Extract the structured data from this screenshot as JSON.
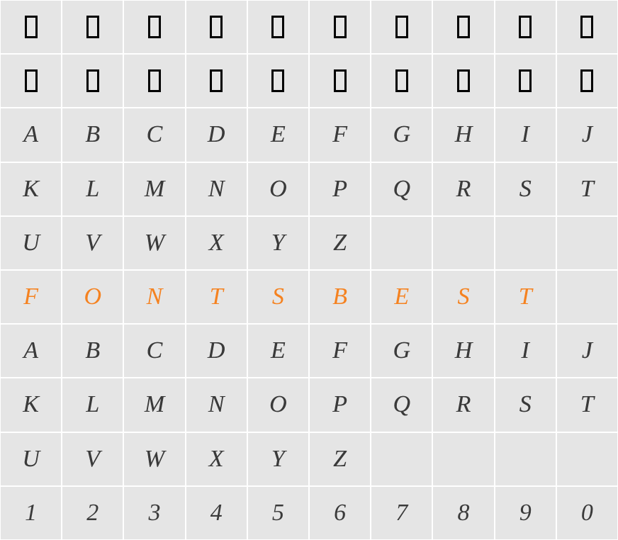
{
  "grid": {
    "columns": 10,
    "rows": 10,
    "background_color": "#e5e5e5",
    "gridline_color": "#ffffff",
    "cells": [
      [
        {
          "type": "placeholder"
        },
        {
          "type": "placeholder"
        },
        {
          "type": "placeholder"
        },
        {
          "type": "placeholder"
        },
        {
          "type": "placeholder"
        },
        {
          "type": "placeholder"
        },
        {
          "type": "placeholder"
        },
        {
          "type": "placeholder"
        },
        {
          "type": "placeholder"
        },
        {
          "type": "placeholder"
        }
      ],
      [
        {
          "type": "placeholder"
        },
        {
          "type": "placeholder"
        },
        {
          "type": "placeholder"
        },
        {
          "type": "placeholder"
        },
        {
          "type": "placeholder"
        },
        {
          "type": "placeholder"
        },
        {
          "type": "placeholder"
        },
        {
          "type": "placeholder"
        },
        {
          "type": "placeholder"
        },
        {
          "type": "placeholder"
        }
      ],
      [
        {
          "type": "letter",
          "value": "A",
          "color": "#3a3a3a"
        },
        {
          "type": "letter",
          "value": "B",
          "color": "#3a3a3a"
        },
        {
          "type": "letter",
          "value": "C",
          "color": "#3a3a3a"
        },
        {
          "type": "letter",
          "value": "D",
          "color": "#3a3a3a"
        },
        {
          "type": "letter",
          "value": "E",
          "color": "#3a3a3a"
        },
        {
          "type": "letter",
          "value": "F",
          "color": "#3a3a3a"
        },
        {
          "type": "letter",
          "value": "G",
          "color": "#3a3a3a"
        },
        {
          "type": "letter",
          "value": "H",
          "color": "#3a3a3a"
        },
        {
          "type": "letter",
          "value": "I",
          "color": "#3a3a3a"
        },
        {
          "type": "letter",
          "value": "J",
          "color": "#3a3a3a"
        }
      ],
      [
        {
          "type": "letter",
          "value": "K",
          "color": "#3a3a3a"
        },
        {
          "type": "letter",
          "value": "L",
          "color": "#3a3a3a"
        },
        {
          "type": "letter",
          "value": "M",
          "color": "#3a3a3a"
        },
        {
          "type": "letter",
          "value": "N",
          "color": "#3a3a3a"
        },
        {
          "type": "letter",
          "value": "O",
          "color": "#3a3a3a"
        },
        {
          "type": "letter",
          "value": "P",
          "color": "#3a3a3a"
        },
        {
          "type": "letter",
          "value": "Q",
          "color": "#3a3a3a"
        },
        {
          "type": "letter",
          "value": "R",
          "color": "#3a3a3a"
        },
        {
          "type": "letter",
          "value": "S",
          "color": "#3a3a3a"
        },
        {
          "type": "letter",
          "value": "T",
          "color": "#3a3a3a"
        }
      ],
      [
        {
          "type": "letter",
          "value": "U",
          "color": "#3a3a3a"
        },
        {
          "type": "letter",
          "value": "V",
          "color": "#3a3a3a"
        },
        {
          "type": "letter",
          "value": "W",
          "color": "#3a3a3a"
        },
        {
          "type": "letter",
          "value": "X",
          "color": "#3a3a3a"
        },
        {
          "type": "letter",
          "value": "Y",
          "color": "#3a3a3a"
        },
        {
          "type": "letter",
          "value": "Z",
          "color": "#3a3a3a"
        },
        {
          "type": "empty"
        },
        {
          "type": "empty"
        },
        {
          "type": "empty"
        },
        {
          "type": "empty"
        }
      ],
      [
        {
          "type": "letter",
          "value": "F",
          "color": "#f58220"
        },
        {
          "type": "letter",
          "value": "O",
          "color": "#f58220"
        },
        {
          "type": "letter",
          "value": "N",
          "color": "#f58220"
        },
        {
          "type": "letter",
          "value": "T",
          "color": "#f58220"
        },
        {
          "type": "letter",
          "value": "S",
          "color": "#f58220"
        },
        {
          "type": "letter",
          "value": "B",
          "color": "#f58220"
        },
        {
          "type": "letter",
          "value": "E",
          "color": "#f58220"
        },
        {
          "type": "letter",
          "value": "S",
          "color": "#f58220"
        },
        {
          "type": "letter",
          "value": "T",
          "color": "#f58220"
        },
        {
          "type": "empty"
        }
      ],
      [
        {
          "type": "letter",
          "value": "A",
          "color": "#3a3a3a"
        },
        {
          "type": "letter",
          "value": "B",
          "color": "#3a3a3a"
        },
        {
          "type": "letter",
          "value": "C",
          "color": "#3a3a3a"
        },
        {
          "type": "letter",
          "value": "D",
          "color": "#3a3a3a"
        },
        {
          "type": "letter",
          "value": "E",
          "color": "#3a3a3a"
        },
        {
          "type": "letter",
          "value": "F",
          "color": "#3a3a3a"
        },
        {
          "type": "letter",
          "value": "G",
          "color": "#3a3a3a"
        },
        {
          "type": "letter",
          "value": "H",
          "color": "#3a3a3a"
        },
        {
          "type": "letter",
          "value": "I",
          "color": "#3a3a3a"
        },
        {
          "type": "letter",
          "value": "J",
          "color": "#3a3a3a"
        }
      ],
      [
        {
          "type": "letter",
          "value": "K",
          "color": "#3a3a3a"
        },
        {
          "type": "letter",
          "value": "L",
          "color": "#3a3a3a"
        },
        {
          "type": "letter",
          "value": "M",
          "color": "#3a3a3a"
        },
        {
          "type": "letter",
          "value": "N",
          "color": "#3a3a3a"
        },
        {
          "type": "letter",
          "value": "O",
          "color": "#3a3a3a"
        },
        {
          "type": "letter",
          "value": "P",
          "color": "#3a3a3a"
        },
        {
          "type": "letter",
          "value": "Q",
          "color": "#3a3a3a"
        },
        {
          "type": "letter",
          "value": "R",
          "color": "#3a3a3a"
        },
        {
          "type": "letter",
          "value": "S",
          "color": "#3a3a3a"
        },
        {
          "type": "letter",
          "value": "T",
          "color": "#3a3a3a"
        }
      ],
      [
        {
          "type": "letter",
          "value": "U",
          "color": "#3a3a3a"
        },
        {
          "type": "letter",
          "value": "V",
          "color": "#3a3a3a"
        },
        {
          "type": "letter",
          "value": "W",
          "color": "#3a3a3a"
        },
        {
          "type": "letter",
          "value": "X",
          "color": "#3a3a3a"
        },
        {
          "type": "letter",
          "value": "Y",
          "color": "#3a3a3a"
        },
        {
          "type": "letter",
          "value": "Z",
          "color": "#3a3a3a"
        },
        {
          "type": "empty"
        },
        {
          "type": "empty"
        },
        {
          "type": "empty"
        },
        {
          "type": "empty"
        }
      ],
      [
        {
          "type": "digit",
          "value": "1",
          "color": "#3a3a3a"
        },
        {
          "type": "digit",
          "value": "2",
          "color": "#3a3a3a"
        },
        {
          "type": "digit",
          "value": "3",
          "color": "#3a3a3a"
        },
        {
          "type": "digit",
          "value": "4",
          "color": "#3a3a3a"
        },
        {
          "type": "digit",
          "value": "5",
          "color": "#3a3a3a"
        },
        {
          "type": "digit",
          "value": "6",
          "color": "#3a3a3a"
        },
        {
          "type": "digit",
          "value": "7",
          "color": "#3a3a3a"
        },
        {
          "type": "digit",
          "value": "8",
          "color": "#3a3a3a"
        },
        {
          "type": "digit",
          "value": "9",
          "color": "#3a3a3a"
        },
        {
          "type": "digit",
          "value": "0",
          "color": "#3a3a3a"
        }
      ]
    ]
  },
  "styling": {
    "glyph_fontsize": 34,
    "placeholder_box": {
      "width": 18,
      "height": 32,
      "border_width": 3,
      "border_color": "#000000"
    },
    "accent_color": "#f58220",
    "text_color": "#3a3a3a",
    "font_style": "italic"
  }
}
